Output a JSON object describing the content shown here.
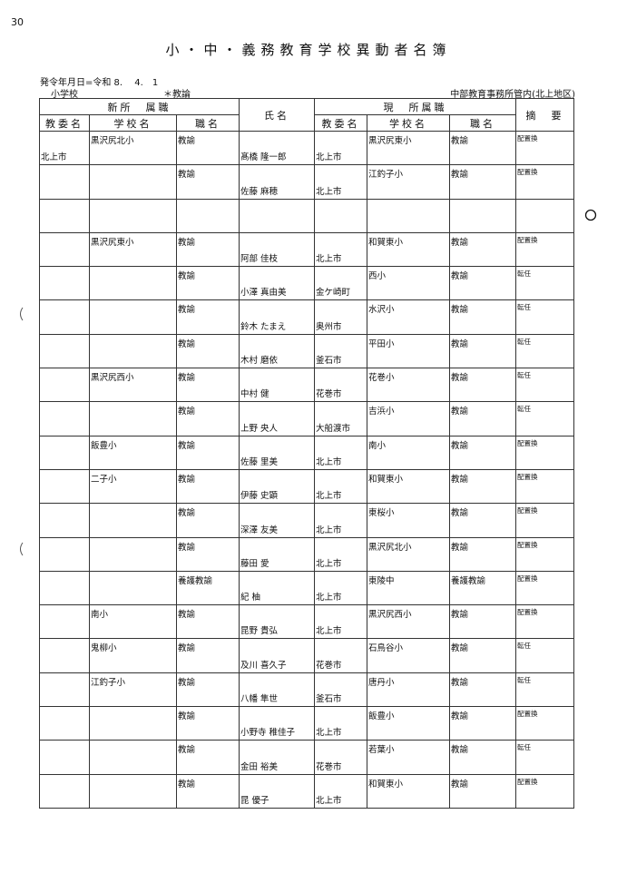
{
  "page_number": "30",
  "title": "小・中・義務教育学校異動者名簿",
  "issue_date": "発令年月日=令和 8.　 4.　1",
  "school_type": "小学校",
  "position_filter": "＊教論",
  "region": "中部教育事務所管内(北上地区)",
  "headers": {
    "new": "新所　属職",
    "name": "氏名",
    "current": "現　所属職",
    "remarks": "摘　要",
    "board": "教委名",
    "school": "学校名",
    "position": "職名"
  },
  "rows": [
    {
      "new_board": "北上市",
      "new_school": "黒沢尻北小",
      "new_position": "教諭",
      "name": "髙橋 隆一郎",
      "cur_board": "北上市",
      "cur_school": "黒沢尻東小",
      "cur_position": "教諭",
      "remarks": "配置換"
    },
    {
      "new_board": "",
      "new_school": "",
      "new_position": "教諭",
      "name": "佐藤 麻穂",
      "cur_board": "北上市",
      "cur_school": "江釣子小",
      "cur_position": "教諭",
      "remarks": "配置換"
    },
    {
      "new_board": "",
      "new_school": "",
      "new_position": "",
      "name": "",
      "cur_board": "",
      "cur_school": "",
      "cur_position": "",
      "remarks": ""
    },
    {
      "new_board": "",
      "new_school": "黒沢尻東小",
      "new_position": "教諭",
      "name": "阿部 佳枝",
      "cur_board": "北上市",
      "cur_school": "和賀東小",
      "cur_position": "教諭",
      "remarks": "配置換"
    },
    {
      "new_board": "",
      "new_school": "",
      "new_position": "教諭",
      "name": "小澤 真由美",
      "cur_board": "金ケ崎町",
      "cur_school": "西小",
      "cur_position": "教諭",
      "remarks": "転任"
    },
    {
      "new_board": "",
      "new_school": "",
      "new_position": "教諭",
      "name": "鈴木 たまえ",
      "cur_board": "奥州市",
      "cur_school": "水沢小",
      "cur_position": "教諭",
      "remarks": "転任"
    },
    {
      "new_board": "",
      "new_school": "",
      "new_position": "教諭",
      "name": "木村 磨依",
      "cur_board": "釜石市",
      "cur_school": "平田小",
      "cur_position": "教諭",
      "remarks": "転任"
    },
    {
      "new_board": "",
      "new_school": "黒沢尻西小",
      "new_position": "教諭",
      "name": "中村 健",
      "cur_board": "花巻市",
      "cur_school": "花巻小",
      "cur_position": "教諭",
      "remarks": "転任"
    },
    {
      "new_board": "",
      "new_school": "",
      "new_position": "教諭",
      "name": "上野 央人",
      "cur_board": "大船渡市",
      "cur_school": "吉浜小",
      "cur_position": "教諭",
      "remarks": "転任"
    },
    {
      "new_board": "",
      "new_school": "飯豊小",
      "new_position": "教諭",
      "name": "佐藤 里美",
      "cur_board": "北上市",
      "cur_school": "南小",
      "cur_position": "教諭",
      "remarks": "配置換"
    },
    {
      "new_board": "",
      "new_school": "二子小",
      "new_position": "教諭",
      "name": "伊藤 史顕",
      "cur_board": "北上市",
      "cur_school": "和賀東小",
      "cur_position": "教諭",
      "remarks": "配置換"
    },
    {
      "new_board": "",
      "new_school": "",
      "new_position": "教諭",
      "name": "深澤 友美",
      "cur_board": "北上市",
      "cur_school": "東桜小",
      "cur_position": "教諭",
      "remarks": "配置換"
    },
    {
      "new_board": "",
      "new_school": "",
      "new_position": "教諭",
      "name": "藤田 愛",
      "cur_board": "北上市",
      "cur_school": "黒沢尻北小",
      "cur_position": "教諭",
      "remarks": "配置換"
    },
    {
      "new_board": "",
      "new_school": "",
      "new_position": "養護教諭",
      "name": "紀 柚",
      "cur_board": "北上市",
      "cur_school": "東陵中",
      "cur_position": "養護教諭",
      "remarks": "配置換"
    },
    {
      "new_board": "",
      "new_school": "南小",
      "new_position": "教諭",
      "name": "昆野 貴弘",
      "cur_board": "北上市",
      "cur_school": "黒沢尻西小",
      "cur_position": "教諭",
      "remarks": "配置換"
    },
    {
      "new_board": "",
      "new_school": "鬼柳小",
      "new_position": "教諭",
      "name": "及川 喜久子",
      "cur_board": "花巻市",
      "cur_school": "石鳥谷小",
      "cur_position": "教諭",
      "remarks": "転任"
    },
    {
      "new_board": "",
      "new_school": "江釣子小",
      "new_position": "教諭",
      "name": "八幡 隼世",
      "cur_board": "釜石市",
      "cur_school": "唐丹小",
      "cur_position": "教諭",
      "remarks": "転任"
    },
    {
      "new_board": "",
      "new_school": "",
      "new_position": "教諭",
      "name": "小野寺 稚佳子",
      "cur_board": "北上市",
      "cur_school": "飯豊小",
      "cur_position": "教諭",
      "remarks": "配置換"
    },
    {
      "new_board": "",
      "new_school": "",
      "new_position": "教諭",
      "name": "金田 裕美",
      "cur_board": "花巻市",
      "cur_school": "若葉小",
      "cur_position": "教諭",
      "remarks": "転任"
    },
    {
      "new_board": "",
      "new_school": "",
      "new_position": "教諭",
      "name": "昆 優子",
      "cur_board": "北上市",
      "cur_school": "和賀東小",
      "cur_position": "教諭",
      "remarks": "配置換"
    }
  ]
}
